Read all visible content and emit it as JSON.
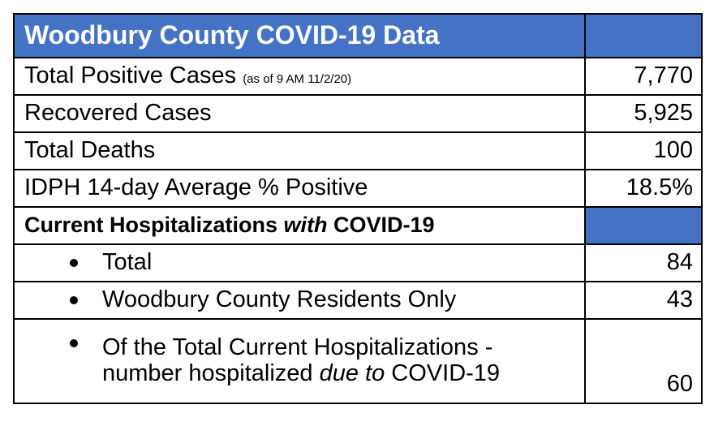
{
  "title": "Woodbury County COVID-19 Data",
  "rows": [
    {
      "label": "Total Positive Cases",
      "note": "(as of 9 AM 11/2/20)",
      "value": "7,770"
    },
    {
      "label": "Recovered Cases",
      "value": "5,925"
    },
    {
      "label": "Total Deaths",
      "value": "100"
    },
    {
      "label": "IDPH 14-day Average % Positive",
      "value": "18.5%"
    }
  ],
  "section": {
    "label_part1": "Current Hospitalizations ",
    "label_italic": "with",
    "label_part2": " COVID-19"
  },
  "bullets": [
    {
      "label": "Total",
      "value": "84"
    },
    {
      "label": "Woodbury County Residents Only",
      "value": "43"
    },
    {
      "label_line1": "Of the Total Current Hospitalizations -",
      "label_line2_part1": "number hospitalized ",
      "label_line2_italic": "due to",
      "label_line2_part2": " COVID-19",
      "value": "60"
    }
  ],
  "colors": {
    "header_bg": "#4472c4",
    "header_text": "#ffffff"
  }
}
